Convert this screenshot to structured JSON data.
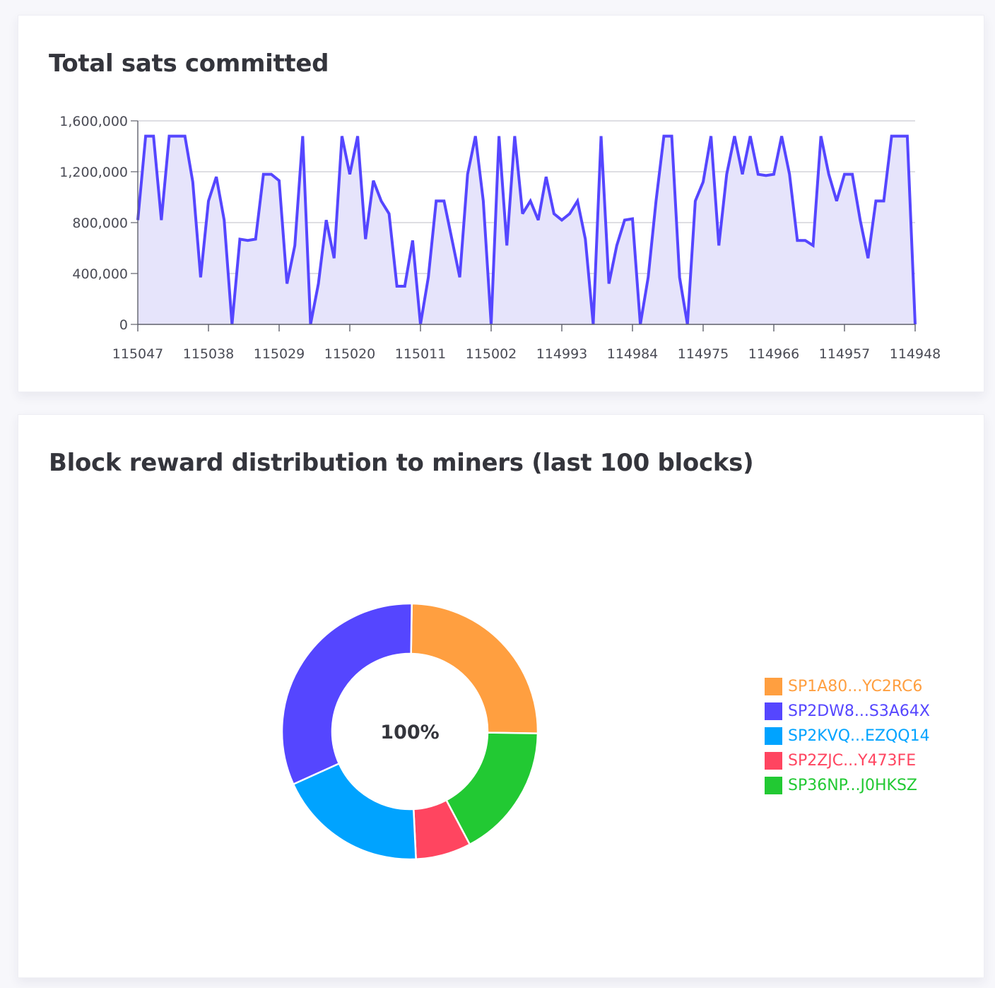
{
  "colors": {
    "line": "#5546ff",
    "area": "#e6e4fb",
    "grid": "#c9c9d2",
    "axis": "#5f606b"
  },
  "line_card": {
    "title": "Total sats committed"
  },
  "pie_card": {
    "title": "Block reward distribution to miners (last 100 blocks)"
  },
  "chart_data": [
    {
      "type": "area",
      "title": "Total sats committed",
      "xlabel": "",
      "ylabel": "",
      "ylim": [
        0,
        1600000
      ],
      "y_ticks": [
        0,
        400000,
        800000,
        1200000,
        1600000
      ],
      "y_tick_labels": [
        "0",
        "400,000",
        "800,000",
        "1,200,000",
        "1,600,000"
      ],
      "x_tick_labels": [
        "115047",
        "115038",
        "115029",
        "115020",
        "115011",
        "115002",
        "114993",
        "114984",
        "114975",
        "114966",
        "114957",
        "114948"
      ],
      "x_start": 115047,
      "x_end": 114948,
      "series": [
        {
          "name": "Total sats committed",
          "values": [
            820000,
            1480000,
            1480000,
            820000,
            1480000,
            1480000,
            1480000,
            1120000,
            370000,
            970000,
            1160000,
            820000,
            0,
            670000,
            660000,
            670000,
            1180000,
            1180000,
            1130000,
            320000,
            620000,
            1480000,
            0,
            320000,
            820000,
            520000,
            1480000,
            1180000,
            1480000,
            670000,
            1130000,
            970000,
            870000,
            300000,
            300000,
            660000,
            0,
            370000,
            970000,
            970000,
            670000,
            370000,
            1180000,
            1480000,
            970000,
            0,
            1480000,
            620000,
            1480000,
            870000,
            970000,
            820000,
            1160000,
            870000,
            820000,
            870000,
            970000,
            670000,
            0,
            1480000,
            320000,
            620000,
            820000,
            830000,
            0,
            370000,
            970000,
            1480000,
            1480000,
            370000,
            0,
            970000,
            1120000,
            1480000,
            620000,
            1180000,
            1480000,
            1180000,
            1480000,
            1180000,
            1170000,
            1180000,
            1480000,
            1180000,
            660000,
            660000,
            620000,
            1480000,
            1180000,
            970000,
            1180000,
            1180000,
            820000,
            520000,
            970000,
            970000,
            1480000,
            1480000,
            1480000,
            0
          ]
        }
      ]
    },
    {
      "type": "pie",
      "title": "Block reward distribution to miners (last 100 blocks)",
      "center_label": "100%",
      "legend_position": "right",
      "slices": [
        {
          "label": "SP1A80...YC2RC6",
          "value": 25,
          "color": "#ff9f40"
        },
        {
          "label": "SP36NP...J0HKSZ",
          "value": 17,
          "color": "#22c933"
        },
        {
          "label": "SP2ZJC...Y473FE",
          "value": 7,
          "color": "#ff4560"
        },
        {
          "label": "SP2KVQ...EZQQ14",
          "value": 19,
          "color": "#00a3ff"
        },
        {
          "label": "SP2DW8...S3A64X",
          "value": 32,
          "color": "#5546ff"
        }
      ],
      "legend": [
        {
          "label": "SP1A80...YC2RC6",
          "color": "#ff9f40"
        },
        {
          "label": "SP2DW8...S3A64X",
          "color": "#5546ff"
        },
        {
          "label": "SP2KVQ...EZQQ14",
          "color": "#00a3ff"
        },
        {
          "label": "SP2ZJC...Y473FE",
          "color": "#ff4560"
        },
        {
          "label": "SP36NP...J0HKSZ",
          "color": "#22c933"
        }
      ]
    }
  ]
}
